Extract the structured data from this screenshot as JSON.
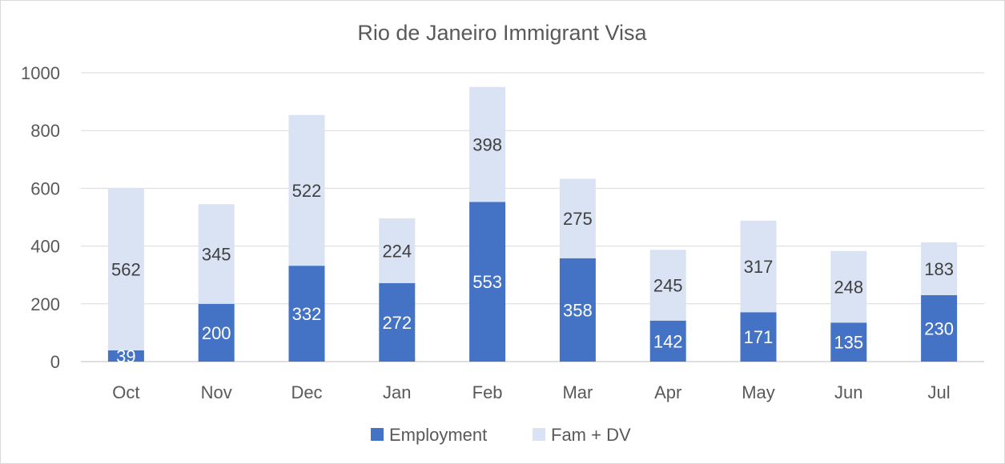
{
  "chart_data": {
    "type": "bar",
    "stacked": true,
    "title": "Rio de Janeiro Immigrant Visa",
    "xlabel": "",
    "ylabel": "",
    "ylim": [
      0,
      1000
    ],
    "yticks": [
      0,
      200,
      400,
      600,
      800,
      1000
    ],
    "grid": true,
    "legend_position": "bottom",
    "categories": [
      "Oct",
      "Nov",
      "Dec",
      "Jan",
      "Feb",
      "Mar",
      "Apr",
      "May",
      "Jun",
      "Jul"
    ],
    "series": [
      {
        "name": "Employment",
        "color": "#4472c4",
        "values": [
          39,
          200,
          332,
          272,
          553,
          358,
          142,
          171,
          135,
          230
        ]
      },
      {
        "name": "Fam + DV",
        "color": "#dae3f3",
        "values": [
          562,
          345,
          522,
          224,
          398,
          275,
          245,
          317,
          248,
          183
        ]
      }
    ]
  }
}
